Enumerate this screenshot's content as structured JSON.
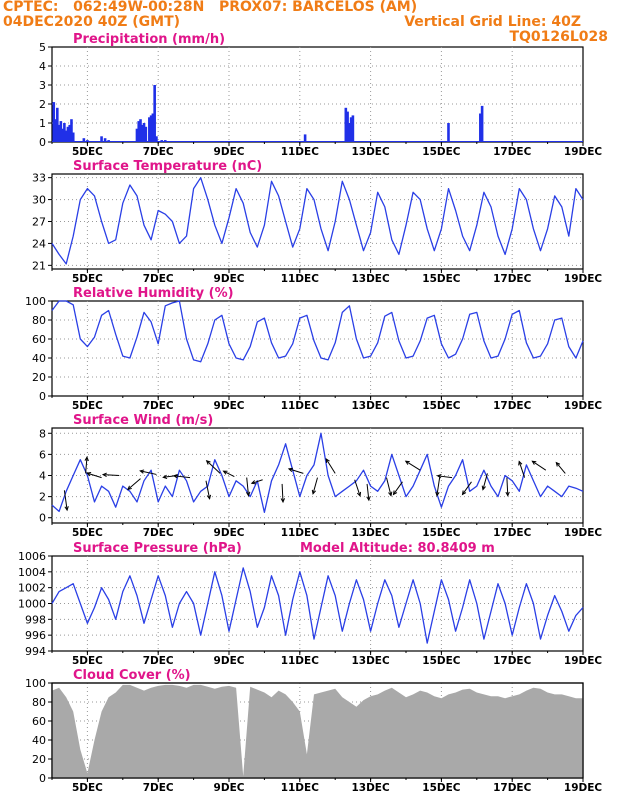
{
  "header": {
    "line1_left": "CPTEC:   062:49W-00:28N   PROX07: BARCELOS (AM)",
    "line2_left": "04DEC2020 40Z (GMT)",
    "line2_right": "Vertical Grid Line: 40Z",
    "line3_right": "TQ0126L028"
  },
  "colors": {
    "header_text": "#f07c16",
    "panel_title": "#e0158a",
    "line": "#2a3fe6",
    "bar": "#2030e8",
    "cloud_fill": "#a9a9a9",
    "grid": "#999999"
  },
  "x_axis": {
    "tick_labels": [
      "5DEC",
      "7DEC",
      "9DEC",
      "11DEC",
      "13DEC",
      "15DEC",
      "17DEC",
      "19DEC"
    ],
    "tick_days": [
      5,
      7,
      9,
      11,
      13,
      15,
      17,
      19
    ],
    "range_days": [
      4.0,
      19.0
    ]
  },
  "chart_data": [
    {
      "id": "precip",
      "type": "bar",
      "title": "Precipitation (mm/h)",
      "ylim": [
        0,
        5
      ],
      "yticks": [
        0,
        1,
        2,
        3,
        4,
        5
      ],
      "x_unit": "day of Dec 2020",
      "bars": [
        {
          "x": 4.05,
          "y": 2.1
        },
        {
          "x": 4.1,
          "y": 1.2
        },
        {
          "x": 4.15,
          "y": 1.8
        },
        {
          "x": 4.2,
          "y": 0.9
        },
        {
          "x": 4.25,
          "y": 1.1
        },
        {
          "x": 4.3,
          "y": 0.7
        },
        {
          "x": 4.35,
          "y": 1.0
        },
        {
          "x": 4.4,
          "y": 0.6
        },
        {
          "x": 4.45,
          "y": 0.8
        },
        {
          "x": 4.5,
          "y": 0.9
        },
        {
          "x": 4.55,
          "y": 1.2
        },
        {
          "x": 4.6,
          "y": 0.5
        },
        {
          "x": 4.9,
          "y": 0.2
        },
        {
          "x": 5.0,
          "y": 0.1
        },
        {
          "x": 5.4,
          "y": 0.3
        },
        {
          "x": 5.5,
          "y": 0.2
        },
        {
          "x": 5.6,
          "y": 0.1
        },
        {
          "x": 6.4,
          "y": 0.7
        },
        {
          "x": 6.45,
          "y": 1.1
        },
        {
          "x": 6.5,
          "y": 1.2
        },
        {
          "x": 6.55,
          "y": 0.9
        },
        {
          "x": 6.6,
          "y": 1.0
        },
        {
          "x": 6.65,
          "y": 0.8
        },
        {
          "x": 6.75,
          "y": 1.3
        },
        {
          "x": 6.8,
          "y": 1.4
        },
        {
          "x": 6.85,
          "y": 1.5
        },
        {
          "x": 6.9,
          "y": 3.0
        },
        {
          "x": 6.95,
          "y": 0.3
        },
        {
          "x": 7.1,
          "y": 0.1
        },
        {
          "x": 7.2,
          "y": 0.1
        },
        {
          "x": 11.15,
          "y": 0.4
        },
        {
          "x": 12.3,
          "y": 1.8
        },
        {
          "x": 12.35,
          "y": 1.6
        },
        {
          "x": 12.4,
          "y": 1.0
        },
        {
          "x": 12.45,
          "y": 1.3
        },
        {
          "x": 12.5,
          "y": 1.4
        },
        {
          "x": 15.2,
          "y": 1.0
        },
        {
          "x": 16.1,
          "y": 1.5
        },
        {
          "x": 16.15,
          "y": 1.9
        }
      ]
    },
    {
      "id": "temp",
      "type": "line",
      "title": "Surface Temperature (nC)",
      "ylim": [
        20.5,
        33.5
      ],
      "yticks": [
        21,
        24,
        27,
        30,
        33
      ],
      "x": [
        4.0,
        4.2,
        4.4,
        4.6,
        4.8,
        5.0,
        5.2,
        5.4,
        5.6,
        5.8,
        6.0,
        6.2,
        6.4,
        6.6,
        6.8,
        7.0,
        7.2,
        7.4,
        7.6,
        7.8,
        8.0,
        8.2,
        8.4,
        8.6,
        8.8,
        9.0,
        9.2,
        9.4,
        9.6,
        9.8,
        10.0,
        10.2,
        10.4,
        10.6,
        10.8,
        11.0,
        11.2,
        11.4,
        11.6,
        11.8,
        12.0,
        12.2,
        12.4,
        12.6,
        12.8,
        13.0,
        13.2,
        13.4,
        13.6,
        13.8,
        14.0,
        14.2,
        14.4,
        14.6,
        14.8,
        15.0,
        15.2,
        15.4,
        15.6,
        15.8,
        16.0,
        16.2,
        16.4,
        16.6,
        16.8,
        17.0,
        17.2,
        17.4,
        17.6,
        17.8,
        18.0,
        18.2,
        18.4,
        18.6,
        18.8,
        19.0
      ],
      "y": [
        24.0,
        22.5,
        21.2,
        25.0,
        30.0,
        31.5,
        30.5,
        27.0,
        24.0,
        24.5,
        29.5,
        32.0,
        30.5,
        26.5,
        24.5,
        28.5,
        28.0,
        27.0,
        24.0,
        25.0,
        31.5,
        33.0,
        30.0,
        26.5,
        24.0,
        27.5,
        31.5,
        29.5,
        25.5,
        23.5,
        26.5,
        32.5,
        30.5,
        27.0,
        23.5,
        26.0,
        31.5,
        30.0,
        26.0,
        23.0,
        27.0,
        32.5,
        30.0,
        26.5,
        23.0,
        25.5,
        31.0,
        29.0,
        24.5,
        22.5,
        26.5,
        31.0,
        30.0,
        26.0,
        23.0,
        26.0,
        31.5,
        28.5,
        25.0,
        23.0,
        26.5,
        31.0,
        29.0,
        25.0,
        22.5,
        26.0,
        31.5,
        30.0,
        26.0,
        23.0,
        26.0,
        30.5,
        29.0,
        25.0,
        31.5,
        30.0
      ]
    },
    {
      "id": "rh",
      "type": "line",
      "title": "Relative Humidity (%)",
      "ylim": [
        0,
        100
      ],
      "yticks": [
        0,
        20,
        40,
        60,
        80,
        100
      ],
      "x": [
        4.0,
        4.2,
        4.4,
        4.6,
        4.8,
        5.0,
        5.2,
        5.4,
        5.6,
        5.8,
        6.0,
        6.2,
        6.4,
        6.6,
        6.8,
        7.0,
        7.2,
        7.4,
        7.6,
        7.8,
        8.0,
        8.2,
        8.4,
        8.6,
        8.8,
        9.0,
        9.2,
        9.4,
        9.6,
        9.8,
        10.0,
        10.2,
        10.4,
        10.6,
        10.8,
        11.0,
        11.2,
        11.4,
        11.6,
        11.8,
        12.0,
        12.2,
        12.4,
        12.6,
        12.8,
        13.0,
        13.2,
        13.4,
        13.6,
        13.8,
        14.0,
        14.2,
        14.4,
        14.6,
        14.8,
        15.0,
        15.2,
        15.4,
        15.6,
        15.8,
        16.0,
        16.2,
        16.4,
        16.6,
        16.8,
        17.0,
        17.2,
        17.4,
        17.6,
        17.8,
        18.0,
        18.2,
        18.4,
        18.6,
        18.8,
        19.0
      ],
      "y": [
        90,
        100,
        100,
        96,
        60,
        52,
        62,
        85,
        90,
        65,
        42,
        40,
        62,
        88,
        78,
        55,
        95,
        98,
        100,
        60,
        38,
        36,
        55,
        80,
        85,
        55,
        40,
        38,
        52,
        78,
        82,
        56,
        40,
        42,
        55,
        82,
        85,
        58,
        40,
        38,
        56,
        88,
        95,
        60,
        40,
        42,
        56,
        84,
        88,
        58,
        40,
        42,
        58,
        82,
        85,
        55,
        40,
        44,
        60,
        86,
        88,
        58,
        40,
        42,
        60,
        86,
        90,
        56,
        40,
        42,
        55,
        80,
        82,
        52,
        40,
        58
      ]
    },
    {
      "id": "wind",
      "type": "line",
      "title": "Surface Wind (m/s)",
      "ylim": [
        -0.5,
        8.5
      ],
      "yticks": [
        0,
        2,
        4,
        6,
        8
      ],
      "x": [
        4.0,
        4.2,
        4.4,
        4.6,
        4.8,
        5.0,
        5.2,
        5.4,
        5.6,
        5.8,
        6.0,
        6.2,
        6.4,
        6.6,
        6.8,
        7.0,
        7.2,
        7.4,
        7.6,
        7.8,
        8.0,
        8.2,
        8.4,
        8.6,
        8.8,
        9.0,
        9.2,
        9.4,
        9.6,
        9.8,
        10.0,
        10.2,
        10.4,
        10.6,
        10.8,
        11.0,
        11.2,
        11.4,
        11.6,
        11.8,
        12.0,
        12.2,
        12.4,
        12.6,
        12.8,
        13.0,
        13.2,
        13.4,
        13.6,
        13.8,
        14.0,
        14.2,
        14.4,
        14.6,
        14.8,
        15.0,
        15.2,
        15.4,
        15.6,
        15.8,
        16.0,
        16.2,
        16.4,
        16.6,
        16.8,
        17.0,
        17.2,
        17.4,
        17.6,
        17.8,
        18.0,
        18.2,
        18.4,
        18.6,
        18.8,
        19.0
      ],
      "y": [
        1.2,
        0.6,
        2.5,
        4.0,
        5.5,
        4.0,
        1.5,
        3.0,
        2.5,
        1.0,
        3.0,
        2.5,
        1.5,
        3.5,
        4.5,
        1.5,
        3.0,
        2.0,
        4.5,
        3.5,
        1.5,
        2.5,
        3.0,
        5.5,
        4.0,
        2.0,
        3.5,
        3.0,
        2.0,
        3.5,
        0.5,
        3.5,
        5.0,
        7.0,
        4.5,
        2.0,
        4.0,
        5.0,
        8.0,
        4.0,
        2.0,
        2.5,
        3.0,
        3.5,
        4.5,
        3.0,
        2.5,
        3.5,
        6.0,
        4.0,
        2.0,
        3.0,
        4.5,
        6.0,
        3.0,
        1.0,
        3.0,
        4.0,
        5.5,
        2.5,
        3.0,
        4.5,
        3.0,
        2.0,
        4.0,
        3.5,
        2.5,
        5.0,
        3.5,
        2.0,
        3.0,
        2.5,
        2.0,
        3.0,
        2.8,
        2.5
      ],
      "arrows": [
        {
          "x": 4.35,
          "y": 2.6,
          "u": 0.3,
          "v": -2.2
        },
        {
          "x": 4.95,
          "y": 4.2,
          "u": 0.15,
          "v": 1.8
        },
        {
          "x": 5.4,
          "y": 3.8,
          "u": -1.6,
          "v": 0.5
        },
        {
          "x": 5.9,
          "y": 4.0,
          "u": -1.8,
          "v": 0.1
        },
        {
          "x": 6.5,
          "y": 3.7,
          "u": -1.4,
          "v": -1.2
        },
        {
          "x": 6.95,
          "y": 4.1,
          "u": -1.8,
          "v": 0.4
        },
        {
          "x": 7.55,
          "y": 4.0,
          "u": -1.6,
          "v": -0.2
        },
        {
          "x": 7.9,
          "y": 3.8,
          "u": -1.8,
          "v": 0.2
        },
        {
          "x": 8.35,
          "y": 3.5,
          "u": 0.4,
          "v": -2.0
        },
        {
          "x": 8.75,
          "y": 4.2,
          "u": -1.5,
          "v": 1.4
        },
        {
          "x": 9.15,
          "y": 3.9,
          "u": -1.2,
          "v": 0.6
        },
        {
          "x": 9.5,
          "y": 3.8,
          "u": 0.2,
          "v": -2.0
        },
        {
          "x": 9.95,
          "y": 3.6,
          "u": -1.2,
          "v": -0.4
        },
        {
          "x": 10.5,
          "y": 3.2,
          "u": 0.1,
          "v": -2.0
        },
        {
          "x": 11.1,
          "y": 4.2,
          "u": -1.6,
          "v": 0.5
        },
        {
          "x": 11.5,
          "y": 3.8,
          "u": -0.5,
          "v": -1.8
        },
        {
          "x": 12.0,
          "y": 4.2,
          "u": -1.0,
          "v": 1.6
        },
        {
          "x": 12.55,
          "y": 3.6,
          "u": 0.6,
          "v": -1.8
        },
        {
          "x": 12.9,
          "y": 3.2,
          "u": 0.2,
          "v": -1.8
        },
        {
          "x": 13.45,
          "y": 3.8,
          "u": 0.5,
          "v": -2.0
        },
        {
          "x": 13.9,
          "y": 3.4,
          "u": -1.0,
          "v": -1.4
        },
        {
          "x": 14.4,
          "y": 4.5,
          "u": -1.6,
          "v": 1.0
        },
        {
          "x": 14.95,
          "y": 3.8,
          "u": -0.3,
          "v": -2.0
        },
        {
          "x": 15.3,
          "y": 3.8,
          "u": -1.6,
          "v": 0.2
        },
        {
          "x": 15.85,
          "y": 3.4,
          "u": -1.0,
          "v": -1.4
        },
        {
          "x": 16.3,
          "y": 4.2,
          "u": -0.5,
          "v": -1.8
        },
        {
          "x": 16.85,
          "y": 3.8,
          "u": 0.1,
          "v": -2.0
        },
        {
          "x": 17.35,
          "y": 3.8,
          "u": -0.6,
          "v": 1.8
        },
        {
          "x": 17.95,
          "y": 4.5,
          "u": -1.5,
          "v": 1.0
        },
        {
          "x": 18.5,
          "y": 4.2,
          "u": -1.0,
          "v": 1.2
        }
      ]
    },
    {
      "id": "pres",
      "type": "line",
      "title": "Surface Pressure (hPa)",
      "annotation": "Model Altitude: 80.8409 m",
      "ylim": [
        994,
        1006
      ],
      "yticks": [
        994,
        996,
        998,
        1000,
        1002,
        1004,
        1006
      ],
      "ytick_labels": [
        "994",
        "996",
        "998",
        "1000",
        "1002",
        "1004",
        "1006"
      ],
      "x": [
        4.0,
        4.2,
        4.4,
        4.6,
        4.8,
        5.0,
        5.2,
        5.4,
        5.6,
        5.8,
        6.0,
        6.2,
        6.4,
        6.6,
        6.8,
        7.0,
        7.2,
        7.4,
        7.6,
        7.8,
        8.0,
        8.2,
        8.4,
        8.6,
        8.8,
        9.0,
        9.2,
        9.4,
        9.6,
        9.8,
        10.0,
        10.2,
        10.4,
        10.6,
        10.8,
        11.0,
        11.2,
        11.4,
        11.6,
        11.8,
        12.0,
        12.2,
        12.4,
        12.6,
        12.8,
        13.0,
        13.2,
        13.4,
        13.6,
        13.8,
        14.0,
        14.2,
        14.4,
        14.6,
        14.8,
        15.0,
        15.2,
        15.4,
        15.6,
        15.8,
        16.0,
        16.2,
        16.4,
        16.6,
        16.8,
        17.0,
        17.2,
        17.4,
        17.6,
        17.8,
        18.0,
        18.2,
        18.4,
        18.6,
        18.8,
        19.0
      ],
      "y": [
        1000.0,
        1001.5,
        1002.0,
        1002.5,
        1000.0,
        997.5,
        999.5,
        1002.0,
        1000.5,
        998.0,
        1001.5,
        1003.5,
        1001.0,
        997.5,
        1000.5,
        1003.5,
        1001.0,
        997.0,
        1000.0,
        1001.5,
        1000.0,
        996.0,
        1000.0,
        1004.0,
        1001.0,
        996.5,
        1000.5,
        1004.5,
        1001.5,
        997.0,
        999.5,
        1003.5,
        1001.0,
        996.0,
        1000.5,
        1004.0,
        1001.0,
        995.5,
        999.5,
        1003.5,
        1001.0,
        996.5,
        1000.0,
        1003.0,
        1000.5,
        996.5,
        1000.0,
        1003.0,
        1001.0,
        997.0,
        1000.0,
        1003.0,
        1000.0,
        995.0,
        999.0,
        1003.0,
        1000.5,
        996.5,
        999.5,
        1003.0,
        1000.0,
        995.5,
        999.0,
        1002.5,
        1000.0,
        996.0,
        999.5,
        1002.5,
        1000.0,
        995.5,
        998.5,
        1001.0,
        999.0,
        996.5,
        998.5,
        999.5
      ]
    },
    {
      "id": "cloud",
      "type": "area",
      "title": "Cloud Cover (%)",
      "ylim": [
        0,
        100
      ],
      "yticks": [
        0,
        20,
        40,
        60,
        80,
        100
      ],
      "x": [
        4.0,
        4.2,
        4.4,
        4.6,
        4.8,
        5.0,
        5.2,
        5.4,
        5.6,
        5.8,
        6.0,
        6.2,
        6.4,
        6.6,
        6.8,
        7.0,
        7.2,
        7.4,
        7.6,
        7.8,
        8.0,
        8.2,
        8.4,
        8.6,
        8.8,
        9.0,
        9.2,
        9.4,
        9.6,
        9.8,
        10.0,
        10.2,
        10.4,
        10.6,
        10.8,
        11.0,
        11.2,
        11.4,
        11.6,
        11.8,
        12.0,
        12.2,
        12.4,
        12.6,
        12.8,
        13.0,
        13.2,
        13.4,
        13.6,
        13.8,
        14.0,
        14.2,
        14.4,
        14.6,
        14.8,
        15.0,
        15.2,
        15.4,
        15.6,
        15.8,
        16.0,
        16.2,
        16.4,
        16.6,
        16.8,
        17.0,
        17.2,
        17.4,
        17.6,
        17.8,
        18.0,
        18.2,
        18.4,
        18.6,
        18.8,
        19.0
      ],
      "y": [
        92,
        95,
        85,
        70,
        30,
        5,
        40,
        70,
        85,
        90,
        98,
        98,
        95,
        92,
        95,
        97,
        98,
        98,
        97,
        95,
        98,
        98,
        96,
        94,
        96,
        97,
        95,
        2,
        96,
        93,
        90,
        85,
        92,
        88,
        80,
        70,
        25,
        88,
        90,
        92,
        94,
        85,
        80,
        75,
        82,
        86,
        88,
        92,
        95,
        90,
        85,
        88,
        92,
        90,
        86,
        84,
        88,
        90,
        93,
        94,
        90,
        88,
        86,
        86,
        84,
        86,
        88,
        92,
        95,
        94,
        90,
        88,
        88,
        86,
        84,
        84
      ]
    }
  ]
}
